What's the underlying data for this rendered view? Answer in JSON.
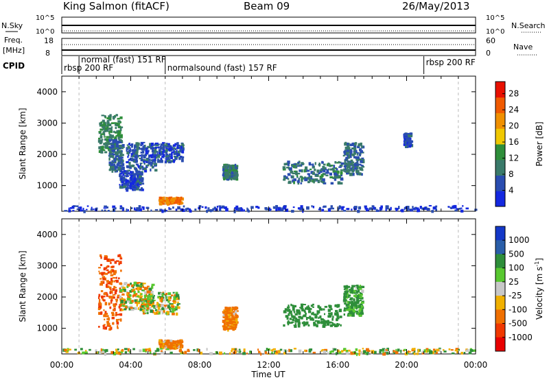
{
  "header": {
    "station": "King Salmon (fitACF)",
    "beam": "Beam 09",
    "date": "26/May/2013"
  },
  "strips": {
    "nsky_label": "N.Sky",
    "nsky_ticks": [
      "10^5",
      "10^0"
    ],
    "nsearch_label": "N.Search",
    "nsearch_ticks": [
      "10^5",
      "10^0"
    ],
    "freq_label": "Freq.",
    "freq_unit": "[MHz]",
    "freq_ticks": [
      "18",
      "8"
    ],
    "nave_label": "Nave",
    "nave_ticks": [
      "60",
      "0"
    ],
    "cpid_label": "CPID",
    "cpid_segments": [
      {
        "label": "rbsp 200 RF",
        "start": 0.0,
        "end": 1.0
      },
      {
        "label": "normal (fast) 151 RF",
        "start": 1.0,
        "end": 6.0
      },
      {
        "label": "normalsound (fast) 157 RF",
        "start": 6.0,
        "end": 21.0
      },
      {
        "label": "rbsp 200 RF",
        "start": 21.0,
        "end": 24.0
      }
    ]
  },
  "x_axis": {
    "label": "Time UT",
    "ticks": [
      "00:00",
      "04:00",
      "08:00",
      "12:00",
      "16:00",
      "20:00",
      "00:00"
    ],
    "range_hours": [
      0,
      24
    ]
  },
  "chart_data": [
    {
      "type": "heatmap",
      "panel": "Power",
      "ylabel": "Slant Range [km]",
      "yticks": [
        "1000",
        "2000",
        "3000",
        "4000"
      ],
      "ylim": [
        180,
        4500
      ],
      "colorbar": {
        "label": "Power [dB]",
        "ticks": [
          "4",
          "8",
          "12",
          "16",
          "20",
          "24",
          "28"
        ],
        "range": [
          0,
          31
        ],
        "colors": [
          "#1428e0",
          "#2a4db0",
          "#3a7a6a",
          "#2e8e3a",
          "#f0c800",
          "#f09000",
          "#f05a00",
          "#e81000"
        ]
      },
      "regions": [
        {
          "t": [
            2.1,
            3.4
          ],
          "r": [
            2100,
            3300
          ],
          "level": 12
        },
        {
          "t": [
            2.7,
            3.5
          ],
          "r": [
            1500,
            2500
          ],
          "level": 8
        },
        {
          "t": [
            3.7,
            5.4
          ],
          "r": [
            1500,
            2400
          ],
          "level": 6
        },
        {
          "t": [
            3.3,
            4.6
          ],
          "r": [
            900,
            1500
          ],
          "level": 5
        },
        {
          "t": [
            5.2,
            7.0
          ],
          "r": [
            1800,
            2400
          ],
          "level": 6
        },
        {
          "t": [
            5.6,
            6.9
          ],
          "r": [
            450,
            650
          ],
          "level": 24
        },
        {
          "t": [
            9.3,
            10.1
          ],
          "r": [
            1250,
            1700
          ],
          "level": 10
        },
        {
          "t": [
            12.8,
            16.2
          ],
          "r": [
            1100,
            1800
          ],
          "level": 9
        },
        {
          "t": [
            16.3,
            17.4
          ],
          "r": [
            1400,
            2400
          ],
          "level": 8
        },
        {
          "t": [
            19.8,
            20.2
          ],
          "r": [
            2300,
            2700
          ],
          "level": 5
        },
        {
          "t": [
            0,
            24
          ],
          "r": [
            220,
            380
          ],
          "level": 4
        }
      ]
    },
    {
      "type": "heatmap",
      "panel": "Velocity",
      "ylabel": "Slant Range [km]",
      "yticks": [
        "1000",
        "2000",
        "3000",
        "4000"
      ],
      "ylim": [
        180,
        4500
      ],
      "colorbar": {
        "label": "Velocity [m s-1]",
        "label_text": "Velocity [m s",
        "label_sup": "-1",
        "label_close": "]",
        "ticks": [
          "1000",
          "500",
          "100",
          "25",
          "-25",
          "-100",
          "-500",
          "-1000"
        ],
        "colors": [
          "#1438c8",
          "#2a5ea8",
          "#2e8e3a",
          "#58c830",
          "#c8c8c8",
          "#f0b000",
          "#f07000",
          "#f03800",
          "#e80000"
        ]
      },
      "regions": [
        {
          "t": [
            2.1,
            3.4
          ],
          "r": [
            1000,
            3400
          ],
          "level": -500
        },
        {
          "t": [
            3.3,
            5.2
          ],
          "r": [
            1600,
            2500
          ],
          "level": -25
        },
        {
          "t": [
            4.5,
            6.7
          ],
          "r": [
            1500,
            2200
          ],
          "level": 0
        },
        {
          "t": [
            5.6,
            6.9
          ],
          "r": [
            400,
            650
          ],
          "level": -200
        },
        {
          "t": [
            9.3,
            10.1
          ],
          "r": [
            1000,
            1700
          ],
          "level": -200
        },
        {
          "t": [
            12.8,
            16.2
          ],
          "r": [
            1100,
            1800
          ],
          "level": 300
        },
        {
          "t": [
            16.3,
            17.4
          ],
          "r": [
            1400,
            2400
          ],
          "level": 200
        },
        {
          "t": [
            0,
            24
          ],
          "r": [
            220,
            380
          ],
          "level": 0
        }
      ]
    }
  ]
}
